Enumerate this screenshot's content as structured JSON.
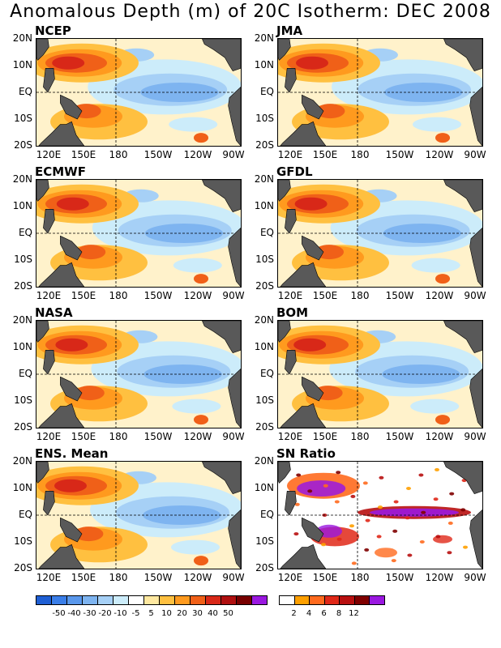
{
  "title": "Anomalous Depth (m) of 20C Isotherm: DEC 2008",
  "axes": {
    "y_labels": [
      "20N",
      "10N",
      "EQ",
      "10S",
      "20S"
    ],
    "x_labels": [
      "120E",
      "150E",
      "180",
      "150W",
      "120W",
      "90W"
    ]
  },
  "panels": [
    {
      "label": "NCEP",
      "kind": "anomaly"
    },
    {
      "label": "JMA",
      "kind": "anomaly"
    },
    {
      "label": "ECMWF",
      "kind": "anomaly"
    },
    {
      "label": "GFDL",
      "kind": "anomaly"
    },
    {
      "label": "NASA",
      "kind": "anomaly"
    },
    {
      "label": "BOM",
      "kind": "anomaly"
    },
    {
      "label": "ENS. Mean",
      "kind": "anomaly"
    },
    {
      "label": "SN Ratio",
      "kind": "snratio"
    }
  ],
  "anomaly_colorbar": {
    "colors": [
      "#1f5fd4",
      "#3a7ee8",
      "#5a98ec",
      "#7eb4f0",
      "#a6d0f6",
      "#ccecfa",
      "#ffffff",
      "#ffe8a0",
      "#ffc040",
      "#ff9a1e",
      "#f06018",
      "#d82818",
      "#b01010",
      "#780000",
      "#9a18e0"
    ],
    "tick_labels": [
      "-50",
      "-40",
      "-30",
      "-20",
      "-10",
      "-5",
      "5",
      "10",
      "20",
      "30",
      "40",
      "50"
    ]
  },
  "sn_colorbar": {
    "colors": [
      "#ffffff",
      "#ffa000",
      "#ff6a1e",
      "#e02818",
      "#b81010",
      "#800000",
      "#9a18e0"
    ],
    "tick_labels": [
      "2",
      "4",
      "6",
      "8",
      "12"
    ]
  },
  "land_color": "#595959"
}
